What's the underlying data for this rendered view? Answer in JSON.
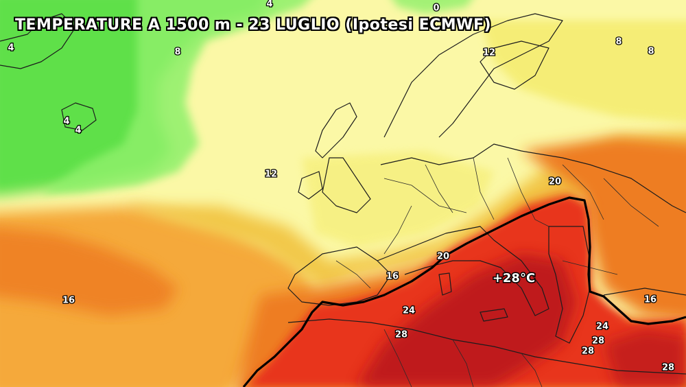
{
  "title": "TEMPERATURE A 1500 m - 23 LUGLIO (Ipotesi ECMWF)",
  "annotation": "+28°C",
  "isotherm_labels": [
    "4",
    "0",
    "4",
    "8",
    "4",
    "4",
    "12",
    "8",
    "8",
    "12",
    "20",
    "20",
    "16",
    "16",
    "24",
    "28",
    "16",
    "24",
    "28",
    "28",
    "28"
  ],
  "colors": {
    "green": "#5ee04a",
    "light_green": "#8ef06a",
    "yellow_pale": "#fbf8a6",
    "yellow": "#f4ec6e",
    "yellow_orange": "#f2c84a",
    "orange": "#f5a93a",
    "dark_orange": "#ee7d24",
    "red": "#e8351e",
    "dark_red": "#b8121a",
    "isotherm_28": "#000000"
  }
}
